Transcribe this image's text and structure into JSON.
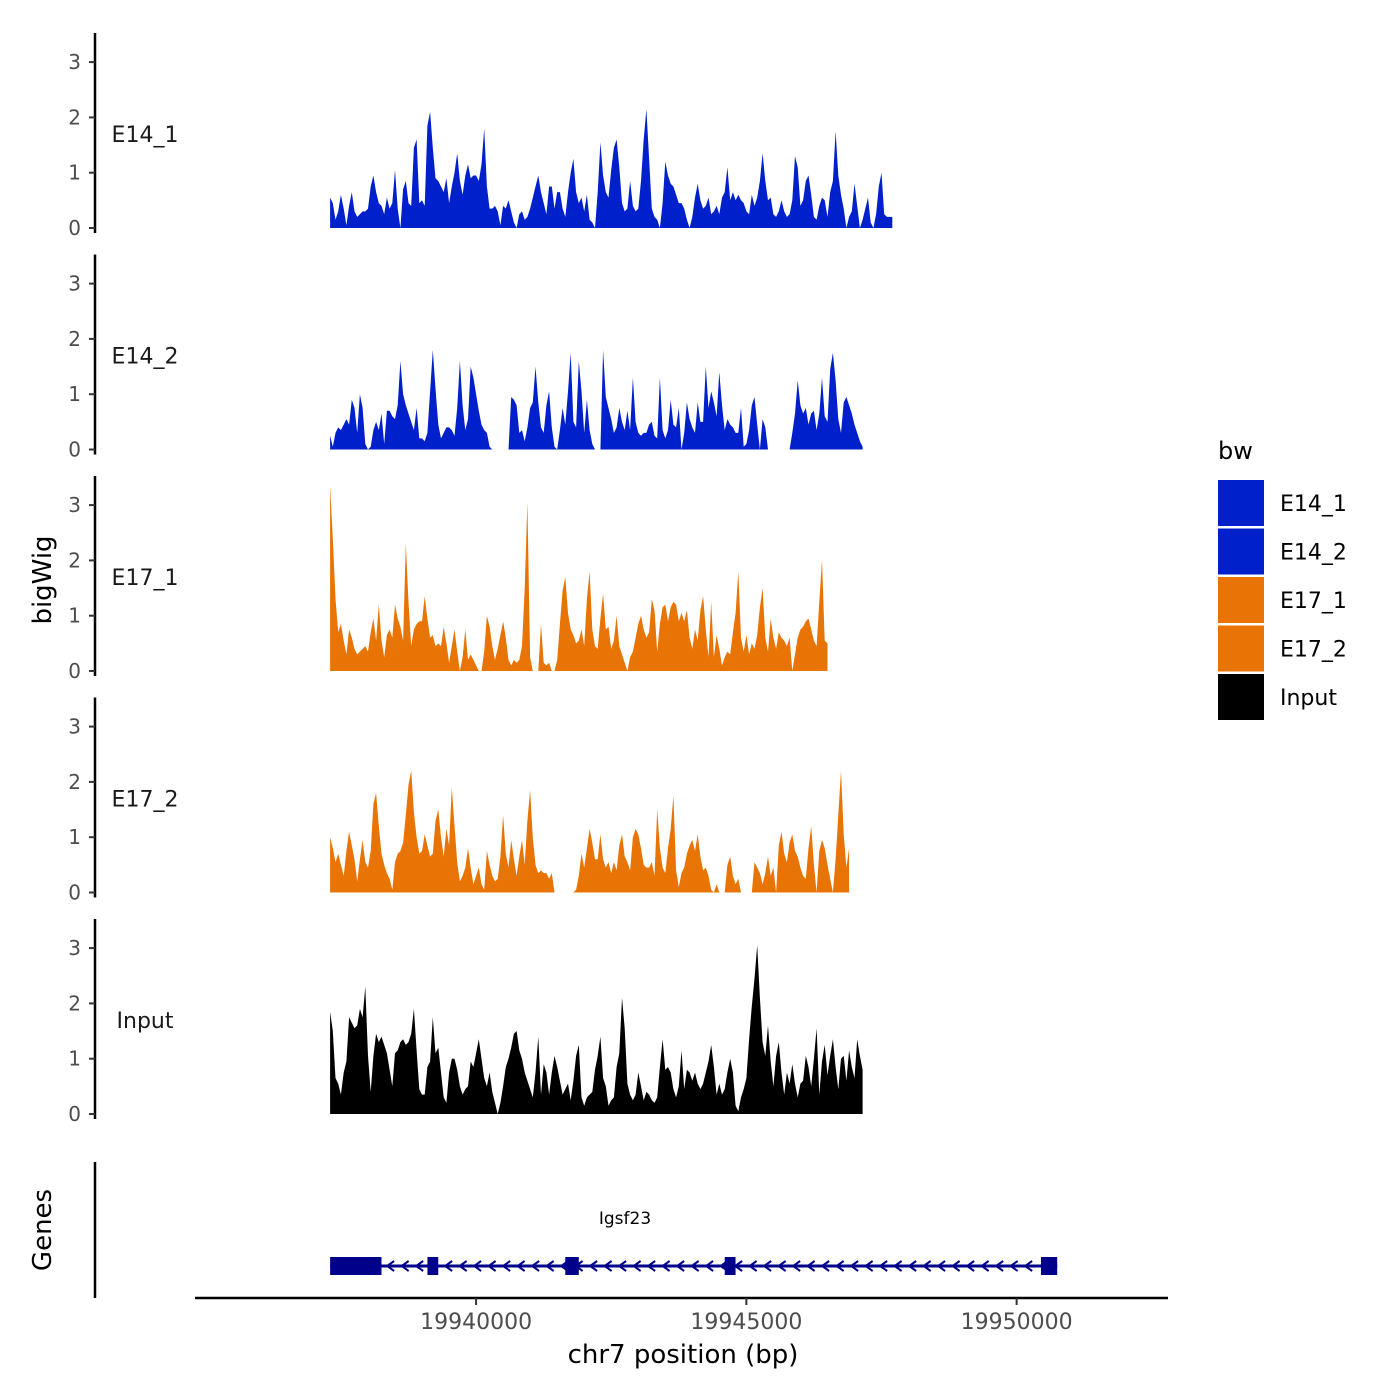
{
  "chart_data": {
    "type": "area",
    "title": "",
    "ylabel": "bigWig",
    "xlabel": "chr7 position (bp)",
    "xlim": [
      19934800,
      19952800
    ],
    "ylim": [
      0,
      3.5
    ],
    "y_ticks": [
      "0",
      "1",
      "2",
      "3"
    ],
    "x_ticks": [
      {
        "value": 19940000,
        "label": "19940000"
      },
      {
        "value": 19945000,
        "label": "19945000"
      },
      {
        "value": 19950000,
        "label": "19950000"
      }
    ],
    "legend": {
      "title": "bw",
      "position": "right",
      "entries": [
        {
          "label": "E14_1",
          "color": "#0020CC"
        },
        {
          "label": "E14_2",
          "color": "#0020CC"
        },
        {
          "label": "E17_1",
          "color": "#E87405"
        },
        {
          "label": "E17_2",
          "color": "#E87405"
        },
        {
          "label": "Input",
          "color": "#000000"
        }
      ]
    },
    "x_start": 19937300,
    "x_step": 50,
    "series": [
      {
        "name": "E14_1",
        "color": "#0020CC",
        "values": [
          0.55,
          0.45,
          0.15,
          0.3,
          0.6,
          0.35,
          0.05,
          0.4,
          0.65,
          0.3,
          0.2,
          0.25,
          0.3,
          0.3,
          0.35,
          0.75,
          0.95,
          0.65,
          0.45,
          0.4,
          0.25,
          0.55,
          0.35,
          0.45,
          1.05,
          0.35,
          0.0,
          0.7,
          0.85,
          0.45,
          0.4,
          1.45,
          1.6,
          0.45,
          0.5,
          0.4,
          1.85,
          2.1,
          1.45,
          0.9,
          0.85,
          0.75,
          0.65,
          0.9,
          0.45,
          0.75,
          1.0,
          1.35,
          0.85,
          0.6,
          0.95,
          1.15,
          0.9,
          0.95,
          0.95,
          0.85,
          1.15,
          1.8,
          0.75,
          0.35,
          0.35,
          0.4,
          0.3,
          0.05,
          0.4,
          0.35,
          0.5,
          0.3,
          0.1,
          0.0,
          0.25,
          0.3,
          0.15,
          0.2,
          0.35,
          0.55,
          0.75,
          0.95,
          0.65,
          0.45,
          0.25,
          0.75,
          0.75,
          0.35,
          0.65,
          0.65,
          0.35,
          0.2,
          0.65,
          1.0,
          1.25,
          0.65,
          0.45,
          0.55,
          0.3,
          0.6,
          0.15,
          0.1,
          0.0,
          0.65,
          1.55,
          0.95,
          0.65,
          0.55,
          1.05,
          1.45,
          1.6,
          1.1,
          0.45,
          0.3,
          0.35,
          0.85,
          0.4,
          0.3,
          0.35,
          0.85,
          1.6,
          2.15,
          1.25,
          0.35,
          0.2,
          0.15,
          0.0,
          0.45,
          1.2,
          0.95,
          0.8,
          0.75,
          0.6,
          0.45,
          0.45,
          0.35,
          0.15,
          0.0,
          0.2,
          0.55,
          0.8,
          0.5,
          0.35,
          0.4,
          0.55,
          0.25,
          0.3,
          0.4,
          0.25,
          0.55,
          0.65,
          1.1,
          0.5,
          0.65,
          0.5,
          0.6,
          0.5,
          0.45,
          0.3,
          0.25,
          0.6,
          0.4,
          0.55,
          0.85,
          1.35,
          0.85,
          0.5,
          0.55,
          0.25,
          0.2,
          0.3,
          0.5,
          0.3,
          0.2,
          0.25,
          0.5,
          1.3,
          1.1,
          0.4,
          0.5,
          0.85,
          0.95,
          0.6,
          0.2,
          0.15,
          0.4,
          0.55,
          0.5,
          0.2,
          0.65,
          0.85,
          1.75,
          0.95,
          0.6,
          0.35,
          0.0,
          0.2,
          0.3,
          0.8,
          0.4,
          0.0,
          0.15,
          0.35,
          0.55,
          0.1,
          0.0,
          0.25,
          0.75,
          1.0,
          0.25,
          0.2,
          0.2,
          0.2
        ]
      },
      {
        "name": "E14_2",
        "color": "#0020CC",
        "values": [
          0.25,
          0.05,
          0.3,
          0.4,
          0.35,
          0.45,
          0.55,
          0.45,
          0.9,
          0.75,
          0.3,
          1.0,
          0.75,
          0.1,
          0.0,
          0.05,
          0.35,
          0.5,
          0.35,
          0.65,
          0.1,
          0.7,
          0.7,
          0.6,
          0.55,
          0.8,
          1.6,
          1.0,
          0.8,
          0.65,
          0.5,
          0.35,
          0.75,
          0.2,
          0.2,
          0.15,
          0.3,
          1.05,
          1.8,
          1.1,
          0.45,
          0.2,
          0.3,
          0.4,
          0.4,
          0.35,
          0.25,
          0.75,
          1.6,
          0.8,
          0.35,
          0.55,
          1.5,
          1.3,
          1.0,
          0.7,
          0.45,
          0.35,
          0.3,
          0.05,
          0.0,
          0.0,
          0.0,
          0.0,
          0.0,
          0.0,
          0.0,
          0.95,
          0.9,
          0.8,
          0.3,
          0.35,
          0.15,
          0.4,
          0.75,
          0.85,
          1.5,
          0.85,
          0.4,
          0.3,
          0.8,
          1.05,
          0.4,
          0.05,
          0.0,
          0.35,
          0.75,
          0.45,
          1.05,
          1.75,
          0.5,
          0.4,
          1.6,
          1.05,
          0.3,
          0.9,
          0.35,
          0.1,
          0.0,
          0.0,
          0.0,
          1.8,
          0.95,
          0.75,
          0.55,
          0.3,
          0.4,
          0.75,
          0.5,
          0.35,
          0.7,
          0.35,
          1.3,
          0.5,
          0.3,
          0.25,
          0.3,
          0.3,
          0.45,
          0.5,
          0.25,
          0.2,
          1.3,
          0.35,
          0.2,
          0.35,
          0.9,
          0.45,
          0.4,
          0.75,
          0.0,
          0.3,
          0.85,
          0.55,
          0.4,
          0.3,
          0.85,
          0.5,
          0.5,
          1.5,
          0.75,
          1.05,
          0.85,
          0.6,
          1.4,
          0.8,
          0.35,
          0.55,
          0.45,
          0.4,
          0.3,
          0.3,
          0.75,
          0.05,
          0.1,
          0.35,
          0.8,
          0.95,
          0.45,
          0.0,
          0.55,
          0.4,
          0.0,
          0.0,
          0.0,
          0.0,
          0.0,
          0.0,
          0.0,
          0.0,
          0.0,
          0.3,
          0.65,
          1.25,
          0.8,
          0.65,
          0.75,
          0.45,
          0.65,
          0.7,
          0.35,
          0.65,
          1.3,
          0.6,
          0.5,
          1.45,
          1.75,
          1.25,
          0.55,
          0.3,
          0.85,
          0.95,
          0.8,
          0.65,
          0.45,
          0.3,
          0.15,
          0.05
        ]
      },
      {
        "name": "E17_1",
        "color": "#E87405",
        "values": [
          3.35,
          2.4,
          1.3,
          0.7,
          0.85,
          0.55,
          0.3,
          0.75,
          0.6,
          0.4,
          0.3,
          0.35,
          0.4,
          0.45,
          0.35,
          0.7,
          0.95,
          0.55,
          1.2,
          0.55,
          0.25,
          0.65,
          0.75,
          0.6,
          1.2,
          0.95,
          0.8,
          0.55,
          2.3,
          1.25,
          0.45,
          0.75,
          0.85,
          0.9,
          0.9,
          1.35,
          0.95,
          0.6,
          0.65,
          0.45,
          0.5,
          0.45,
          0.8,
          0.5,
          0.15,
          0.45,
          0.75,
          0.35,
          0.0,
          0.25,
          0.75,
          0.2,
          0.3,
          0.2,
          0.1,
          0.0,
          0.0,
          0.35,
          1.0,
          0.8,
          0.45,
          0.2,
          0.4,
          0.65,
          0.9,
          0.6,
          0.2,
          0.1,
          0.2,
          0.15,
          0.2,
          0.45,
          1.5,
          3.05,
          0.25,
          0.0,
          0.0,
          0.0,
          0.85,
          0.15,
          0.1,
          0.15,
          0.0,
          0.0,
          0.2,
          0.85,
          1.45,
          1.7,
          1.05,
          0.75,
          0.65,
          0.5,
          0.55,
          0.75,
          0.45,
          1.3,
          1.8,
          0.75,
          0.45,
          0.4,
          0.95,
          1.4,
          0.75,
          0.8,
          0.4,
          0.55,
          1.0,
          0.45,
          0.3,
          0.15,
          0.0,
          0.25,
          0.35,
          0.6,
          0.85,
          1.0,
          0.75,
          0.6,
          0.7,
          1.3,
          1.1,
          0.35,
          0.85,
          1.15,
          1.2,
          0.9,
          1.15,
          1.25,
          1.2,
          0.9,
          1.05,
          0.9,
          1.1,
          0.6,
          0.4,
          0.75,
          0.55,
          1.1,
          1.35,
          0.75,
          0.25,
          1.25,
          0.25,
          0.65,
          0.4,
          0.1,
          0.25,
          0.35,
          0.3,
          0.7,
          1.05,
          1.8,
          0.6,
          0.35,
          0.65,
          0.3,
          0.5,
          0.4,
          0.65,
          1.15,
          1.5,
          0.6,
          0.35,
          0.95,
          0.6,
          0.4,
          0.7,
          0.6,
          0.55,
          0.45,
          0.6,
          0.0,
          0.3,
          0.6,
          0.75,
          0.8,
          0.9,
          0.95,
          0.75,
          0.55,
          0.45,
          1.25,
          2.0,
          0.55,
          0.5
        ]
      },
      {
        "name": "E17_2",
        "color": "#E87405",
        "values": [
          1.0,
          0.8,
          0.55,
          0.7,
          0.5,
          0.3,
          0.75,
          1.1,
          0.85,
          0.6,
          0.2,
          0.6,
          0.95,
          0.55,
          0.45,
          0.75,
          1.6,
          1.8,
          1.2,
          0.7,
          0.5,
          0.35,
          0.25,
          0.05,
          0.55,
          0.7,
          0.75,
          0.9,
          1.4,
          1.95,
          2.2,
          1.45,
          1.0,
          0.7,
          0.75,
          1.05,
          0.85,
          0.65,
          0.7,
          1.3,
          1.5,
          1.0,
          0.65,
          1.15,
          0.85,
          1.9,
          1.2,
          0.55,
          0.2,
          0.3,
          0.45,
          0.8,
          0.45,
          0.15,
          0.3,
          0.45,
          0.15,
          0.05,
          0.75,
          0.5,
          0.3,
          0.2,
          0.25,
          0.65,
          1.4,
          0.7,
          0.45,
          0.95,
          0.6,
          0.3,
          0.65,
          0.95,
          0.5,
          1.3,
          1.85,
          1.0,
          0.5,
          0.35,
          0.4,
          0.35,
          0.35,
          0.25,
          0.35,
          0.0,
          0.0,
          0.0,
          0.0,
          0.0,
          0.0,
          0.0,
          0.0,
          0.05,
          0.3,
          0.7,
          0.45,
          0.8,
          1.15,
          0.9,
          0.6,
          0.6,
          1.05,
          0.6,
          0.45,
          0.55,
          0.35,
          0.55,
          0.4,
          0.85,
          1.05,
          0.65,
          0.55,
          0.4,
          1.0,
          1.15,
          1.05,
          0.8,
          0.5,
          0.45,
          0.45,
          0.55,
          0.3,
          1.5,
          0.8,
          0.45,
          0.35,
          0.8,
          1.15,
          1.75,
          0.4,
          0.1,
          0.35,
          0.45,
          0.7,
          0.85,
          0.95,
          0.75,
          1.05,
          0.65,
          0.4,
          0.45,
          0.3,
          0.05,
          0.0,
          0.15,
          0.0,
          0.0,
          0.0,
          0.5,
          0.65,
          0.3,
          0.15,
          0.25,
          0.0,
          0.0,
          0.0,
          0.0,
          0.0,
          0.55,
          0.45,
          0.35,
          0.15,
          0.35,
          0.65,
          0.3,
          0.45,
          0.0,
          0.85,
          1.1,
          0.7,
          0.55,
          0.9,
          1.05,
          0.75,
          0.65,
          0.45,
          0.3,
          0.25,
          0.8,
          1.2,
          0.5,
          0.0,
          0.75,
          0.95,
          0.8,
          0.5,
          0.25,
          0.0,
          0.6,
          1.4,
          2.2,
          1.05,
          0.45,
          0.8
        ]
      },
      {
        "name": "Input",
        "color": "#000000",
        "values": [
          1.85,
          1.5,
          0.65,
          0.55,
          0.35,
          0.75,
          0.95,
          1.75,
          1.65,
          1.55,
          1.6,
          1.9,
          1.75,
          2.3,
          1.05,
          0.4,
          1.05,
          1.45,
          1.3,
          1.4,
          1.25,
          1.1,
          0.8,
          0.5,
          1.1,
          1.15,
          1.3,
          1.35,
          1.25,
          1.3,
          1.45,
          1.9,
          1.15,
          0.45,
          0.35,
          0.35,
          0.85,
          0.95,
          1.75,
          1.1,
          1.2,
          0.75,
          0.3,
          0.2,
          0.75,
          1.0,
          1.0,
          0.8,
          0.5,
          0.35,
          0.45,
          0.5,
          0.95,
          0.85,
          1.1,
          1.35,
          1.0,
          0.65,
          0.5,
          0.75,
          0.4,
          0.2,
          0.0,
          0.2,
          0.5,
          0.85,
          1.0,
          1.2,
          1.45,
          1.5,
          1.15,
          1.0,
          0.75,
          0.6,
          0.45,
          0.3,
          0.75,
          1.4,
          0.35,
          0.9,
          0.75,
          0.35,
          0.75,
          1.05,
          0.85,
          0.6,
          0.35,
          0.45,
          0.55,
          0.25,
          0.6,
          1.05,
          1.25,
          0.3,
          0.15,
          0.3,
          0.35,
          0.4,
          0.8,
          1.05,
          1.4,
          0.65,
          0.5,
          0.15,
          0.25,
          0.3,
          0.85,
          1.1,
          2.1,
          1.55,
          0.55,
          0.35,
          0.25,
          0.35,
          0.75,
          0.5,
          0.25,
          0.4,
          0.35,
          0.25,
          0.2,
          0.3,
          0.85,
          1.35,
          0.8,
          0.85,
          0.75,
          0.45,
          0.3,
          0.5,
          1.15,
          0.45,
          0.8,
          0.75,
          0.6,
          0.75,
          0.55,
          0.45,
          0.55,
          0.75,
          0.95,
          1.25,
          0.85,
          0.35,
          0.55,
          0.35,
          0.45,
          0.75,
          1.0,
          0.75,
          0.15,
          0.05,
          0.3,
          0.45,
          0.65,
          1.35,
          1.95,
          2.45,
          3.05,
          2.1,
          1.3,
          1.05,
          1.6,
          0.95,
          0.5,
          1.05,
          1.3,
          0.75,
          0.35,
          0.75,
          0.55,
          0.9,
          0.55,
          0.3,
          0.55,
          0.6,
          1.05,
          0.85,
          0.5,
          1.0,
          1.55,
          0.35,
          0.95,
          1.25,
          0.7,
          1.05,
          1.35,
          0.85,
          0.45,
          1.0,
          1.05,
          0.6,
          1.15,
          0.85,
          0.65,
          1.35,
          1.05,
          0.8
        ]
      }
    ],
    "genes_track": {
      "label": "Genes",
      "gene_name": "Igsf23",
      "strand": "-",
      "start": 19937300,
      "end": 19950750,
      "exons": [
        [
          19937300,
          19938250
        ],
        [
          19939100,
          19939300
        ],
        [
          19941650,
          19941900
        ],
        [
          19944600,
          19944800
        ],
        [
          19950450,
          19950750
        ]
      ]
    }
  }
}
